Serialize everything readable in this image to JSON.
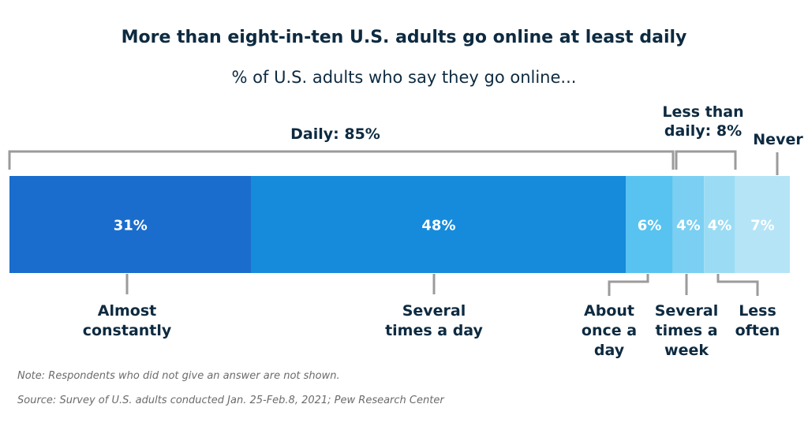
{
  "chart_data": {
    "type": "bar",
    "orientation": "horizontal-stacked",
    "title": "More than eight-in-ten U.S. adults go online at least daily",
    "subtitle": "% of U.S. adults who say they go online...",
    "categories": [
      "Almost constantly",
      "Several times a day",
      "About once a day",
      "Several times a week",
      "Less often",
      "Never"
    ],
    "label_lines": [
      [
        "Almost",
        "constantly"
      ],
      [
        "Several",
        "times a day"
      ],
      [
        "About",
        "once a",
        "day"
      ],
      [
        "Several",
        "times a",
        "week"
      ],
      [
        "Less",
        "often"
      ],
      [
        "Never"
      ]
    ],
    "values": [
      31,
      48,
      6,
      4,
      4,
      7
    ],
    "value_labels": [
      "31%",
      "48%",
      "6%",
      "4%",
      "4%",
      "7%"
    ],
    "colors": [
      "#1a6dcc",
      "#168bdc",
      "#58c3f0",
      "#7acff2",
      "#9bdcf4",
      "#b6e4f7"
    ],
    "groups": [
      {
        "lines": [
          "Daily: 85%"
        ]
      },
      {
        "lines": [
          "Less than",
          "daily: 8%"
        ]
      }
    ],
    "xlim": [
      0,
      100
    ]
  },
  "notes": {
    "note": "Note: Respondents who did not give an answer are not shown.",
    "source": "Source: Survey of U.S. adults conducted Jan. 25-Feb.8, 2021; Pew Research Center"
  }
}
